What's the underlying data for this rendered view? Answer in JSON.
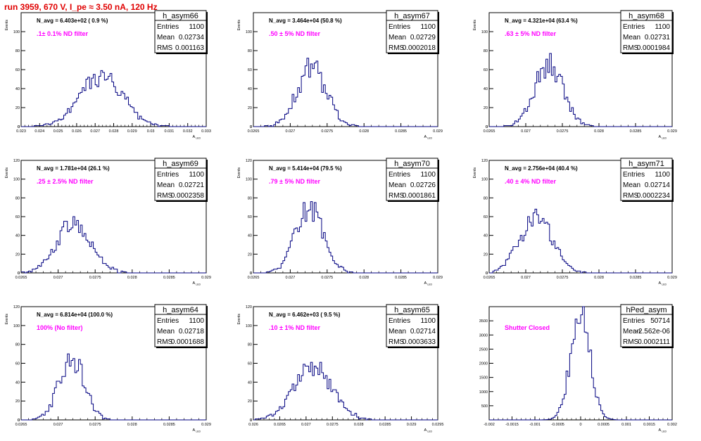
{
  "run_title": "run 3959,   670 V, I_pe ≈ 3.50 nA, 120 Hz",
  "colors": {
    "title": "#e00000",
    "note": "#ff00ff",
    "hist": "#000080",
    "frame": "#000000"
  },
  "chart_data": [
    {
      "type": "bar",
      "name": "h_asym66",
      "title": "h_asym66",
      "navg": "N_avg = 6.403e+02 ( 0.9 %)",
      "note": ".1± 0.1% ND filter",
      "stats": {
        "Entries": "1100",
        "Mean": "0.02734",
        "RMS": "0.001163"
      },
      "xlabel": "A_LED",
      "ylabel": "Events",
      "xlim": [
        0.023,
        0.033
      ],
      "ylim": [
        0,
        120
      ],
      "xticks": [
        "0.023",
        "0.024",
        "0.025",
        "0.026",
        "0.027",
        "0.028",
        "0.029",
        "0.03",
        "0.031",
        "0.032",
        "0.033"
      ],
      "yticks": [
        0,
        20,
        40,
        60,
        80,
        100
      ],
      "mean": 0.02734,
      "rms": 0.001163,
      "entries": 1100,
      "peak": 54
    },
    {
      "type": "bar",
      "name": "h_asym67",
      "title": "h_asym67",
      "navg": "N_avg = 3.464e+04 (50.8 %)",
      "note": ".50 ± 5% ND filter",
      "stats": {
        "Entries": "1100",
        "Mean": "0.02729",
        "RMS": "0.0002018"
      },
      "xlabel": "A_LED",
      "ylabel": "Events",
      "xlim": [
        0.0265,
        0.029
      ],
      "ylim": [
        0,
        120
      ],
      "xticks": [
        "0.0265",
        "0.027",
        "0.0275",
        "0.028",
        "0.0285",
        "0.029"
      ],
      "yticks": [
        0,
        20,
        40,
        60,
        80,
        100
      ],
      "mean": 0.02729,
      "rms": 0.0002018,
      "entries": 1100,
      "peak": 62
    },
    {
      "type": "bar",
      "name": "h_asym68",
      "title": "h_asym68",
      "navg": "N_avg = 4.321e+04 (63.4 %)",
      "note": ".63 ± 5% ND filter",
      "stats": {
        "Entries": "1100",
        "Mean": "0.02731",
        "RMS": "0.0001984"
      },
      "xlabel": "A_LED",
      "ylabel": "Events",
      "xlim": [
        0.0265,
        0.029
      ],
      "ylim": [
        0,
        120
      ],
      "xticks": [
        "0.0265",
        "0.027",
        "0.0275",
        "0.028",
        "0.0285",
        "0.029"
      ],
      "yticks": [
        0,
        20,
        40,
        60,
        80,
        100
      ],
      "mean": 0.02731,
      "rms": 0.0001984,
      "entries": 1100,
      "peak": 64
    },
    {
      "type": "bar",
      "name": "h_asym69",
      "title": "h_asym69",
      "navg": "N_avg = 1.781e+04 (26.1 %)",
      "note": ".25 ± 2.5% ND filter",
      "stats": {
        "Entries": "1100",
        "Mean": "0.02721",
        "RMS": "0.0002358"
      },
      "xlabel": "A_LED",
      "ylabel": "Events",
      "xlim": [
        0.0265,
        0.029
      ],
      "ylim": [
        0,
        120
      ],
      "xticks": [
        "0.0265",
        "0.027",
        "0.0275",
        "0.028",
        "0.0285",
        "0.029"
      ],
      "yticks": [
        0,
        20,
        40,
        60,
        80,
        100,
        120
      ],
      "mean": 0.02721,
      "rms": 0.0002358,
      "entries": 1100,
      "peak": 51
    },
    {
      "type": "bar",
      "name": "h_asym70",
      "title": "h_asym70",
      "navg": "N_avg = 5.414e+04 (79.5 %)",
      "note": ".79 ± 5% ND filter",
      "stats": {
        "Entries": "1100",
        "Mean": "0.02726",
        "RMS": "0.0001861"
      },
      "xlabel": "A_LED",
      "ylabel": "Events",
      "xlim": [
        0.0265,
        0.029
      ],
      "ylim": [
        0,
        120
      ],
      "xticks": [
        "0.0265",
        "0.027",
        "0.0275",
        "0.028",
        "0.0285",
        "0.029"
      ],
      "yticks": [
        0,
        20,
        40,
        60,
        80,
        100,
        120
      ],
      "mean": 0.02726,
      "rms": 0.0001861,
      "entries": 1100,
      "peak": 69
    },
    {
      "type": "bar",
      "name": "h_asym71",
      "title": "h_asym71",
      "navg": "N_avg = 2.756e+04 (40.4 %)",
      "note": ".40 ± 4% ND filter",
      "stats": {
        "Entries": "1100",
        "Mean": "0.02714",
        "RMS": "0.0002234"
      },
      "xlabel": "A_LED",
      "ylabel": "Events",
      "xlim": [
        0.0265,
        0.029
      ],
      "ylim": [
        0,
        120
      ],
      "xticks": [
        "0.0265",
        "0.027",
        "0.0275",
        "0.028",
        "0.0285",
        "0.029"
      ],
      "yticks": [
        0,
        20,
        40,
        60,
        80,
        100,
        120
      ],
      "mean": 0.02714,
      "rms": 0.0002234,
      "entries": 1100,
      "peak": 60
    },
    {
      "type": "bar",
      "name": "h_asym64",
      "title": "h_asym64",
      "navg": "N_avg = 6.814e+04 (100.0 %)",
      "note": "100% (No filter)",
      "stats": {
        "Entries": "1100",
        "Mean": "0.02718",
        "RMS": "0.0001688"
      },
      "xlabel": "A_LED",
      "ylabel": "Events",
      "xlim": [
        0.0265,
        0.029
      ],
      "ylim": [
        0,
        120
      ],
      "xticks": [
        "0.0265",
        "0.027",
        "0.0275",
        "0.028",
        "0.0285",
        "0.029"
      ],
      "yticks": [
        0,
        20,
        40,
        60,
        80,
        100,
        120
      ],
      "mean": 0.02718,
      "rms": 0.0001688,
      "entries": 1100,
      "peak": 67
    },
    {
      "type": "bar",
      "name": "h_asym65",
      "title": "h_asym65",
      "navg": "N_avg = 6.462e+03 ( 9.5 %)",
      "note": ".10 ± 1% ND filter",
      "stats": {
        "Entries": "1100",
        "Mean": "0.02714",
        "RMS": "0.0003633"
      },
      "xlabel": "A_LED",
      "ylabel": "Events",
      "xlim": [
        0.026,
        0.0295
      ],
      "ylim": [
        0,
        120
      ],
      "xticks": [
        "0.026",
        "0.0265",
        "0.027",
        "0.0275",
        "0.028",
        "0.0285",
        "0.029",
        "0.0295"
      ],
      "yticks": [
        0,
        20,
        40,
        60,
        80,
        100,
        120
      ],
      "mean": 0.02714,
      "rms": 0.0003633,
      "entries": 1100,
      "peak": 55
    },
    {
      "type": "bar",
      "name": "hPed_asym",
      "title": "hPed_asym",
      "navg": "",
      "note": "Shutter Closed",
      "stats": {
        "Entries": "50714",
        "Mean": "-2.562e-06",
        "RMS": "0.0002111"
      },
      "xlabel": "A_LED",
      "ylabel": "",
      "xlim": [
        -0.002,
        0.002
      ],
      "ylim": [
        0,
        4000
      ],
      "xticks": [
        "-0.002",
        "-0.0015",
        "-0.001",
        "-0.0005",
        "0",
        "0.0005",
        "0.001",
        "0.0015",
        "0.002"
      ],
      "yticks": [
        500,
        1000,
        1500,
        2000,
        2500,
        3000,
        3500
      ],
      "mean": -2.562e-06,
      "rms": 0.0002111,
      "entries": 50714,
      "peak": 3850
    }
  ]
}
